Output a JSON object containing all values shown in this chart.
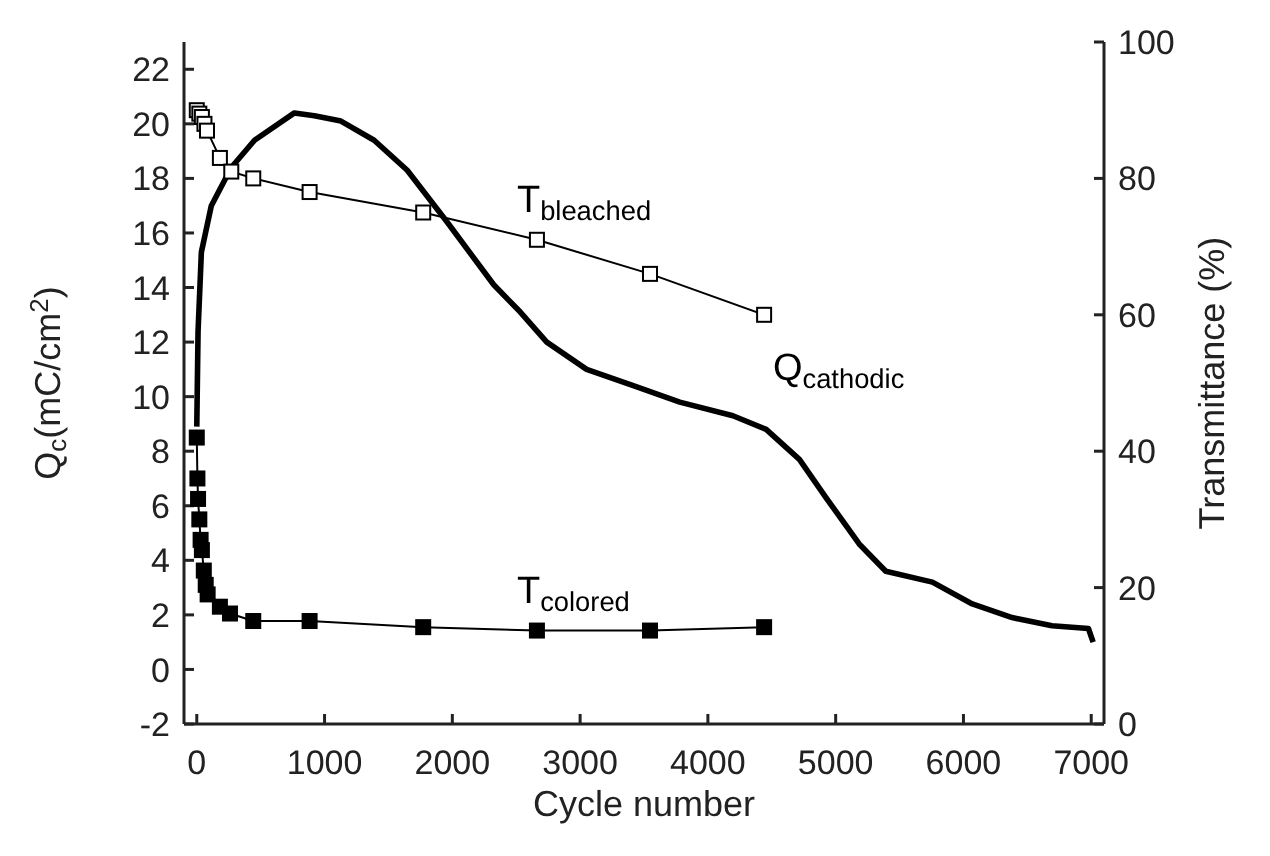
{
  "chart_data": {
    "type": "line",
    "xlabel": "Cycle number",
    "ylabel": "Q$_{c}$(mC/cm$^{2}$)",
    "y2label": "Transmittance (%)",
    "xlim": [
      -100,
      7100
    ],
    "xticks": [
      0,
      1000,
      2000,
      3000,
      4000,
      5000,
      6000,
      7000
    ],
    "ylim": [
      -2,
      23
    ],
    "yticks": [
      -2,
      0,
      2,
      4,
      6,
      8,
      10,
      12,
      14,
      16,
      18,
      20,
      22
    ],
    "y2lim": [
      0,
      100
    ],
    "y2ticks": [
      0,
      20,
      40,
      60,
      80,
      100
    ],
    "series": [
      {
        "name": "Q$_{cathodic}$",
        "color": "#000000",
        "marker": "none",
        "x": [
          0,
          10,
          36,
          114,
          270,
          452,
          764,
          920,
          1128,
          1388,
          1647,
          1959,
          2324,
          2532,
          2739,
          3051,
          3416,
          3780,
          4196,
          4456,
          4716,
          4924,
          5184,
          5392,
          5757,
          6069,
          6381,
          6693,
          6978,
          7015
        ],
        "values": [
          8.9,
          12.4,
          15.3,
          17.0,
          18.4,
          19.4,
          20.4,
          20.3,
          20.1,
          19.4,
          18.3,
          16.4,
          14.1,
          13.1,
          12.0,
          11.0,
          10.4,
          9.8,
          9.3,
          8.8,
          7.7,
          6.3,
          4.6,
          3.6,
          3.2,
          2.4,
          1.9,
          1.6,
          1.5,
          1.0
        ]
      },
      {
        "name": "T$_{bleached}$",
        "color": "#000000",
        "axis": "y2",
        "marker": "square",
        "colors": [
          "#ffffff",
          "#ffffff",
          "#ffffff",
          "#ffffff",
          "#ffffff",
          "#ffffff",
          "#ffffff",
          "#ffffff",
          "#ffffff",
          "#ffffff",
          "#ffffff",
          "#ffffff",
          "#ffffff"
        ],
        "x": [
          0,
          20,
          40,
          60,
          80,
          181,
          270,
          442,
          883,
          1772,
          2662,
          3547,
          4440
        ],
        "values": [
          90,
          89.5,
          89,
          88,
          87,
          83,
          81,
          80,
          78,
          75,
          71,
          66,
          60
        ]
      },
      {
        "name": "T$_{colored}$",
        "color": "#000000",
        "axis": "y2",
        "marker": "square",
        "x": [
          0,
          5,
          10,
          20,
          30,
          40,
          55,
          70,
          85,
          181,
          260,
          442,
          883,
          1772,
          2662,
          3547,
          4440
        ],
        "values": [
          42,
          36,
          33,
          30,
          27,
          25.5,
          22.5,
          20.4,
          19,
          17.2,
          16.2,
          15.1,
          15.1,
          14.2,
          13.7,
          13.7,
          14.2
        ]
      }
    ]
  }
}
